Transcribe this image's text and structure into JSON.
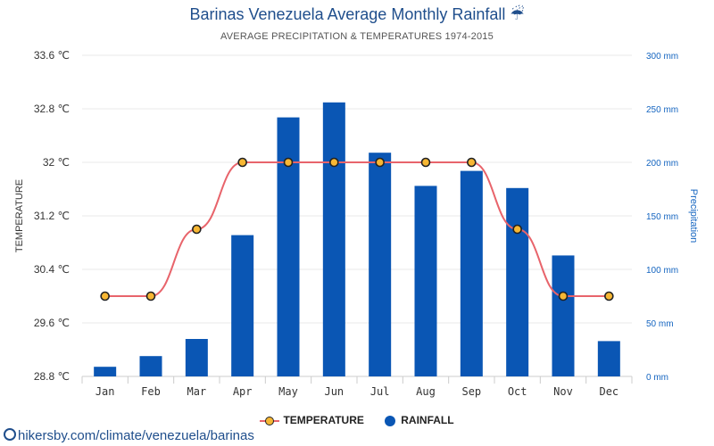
{
  "title": "Barinas Venezuela Average Monthly Rainfall ☔",
  "subtitle": "AVERAGE PRECIPITATION & TEMPERATURES 1974-2015",
  "legend": {
    "temperature": "TEMPERATURE",
    "rainfall": "RAINFALL"
  },
  "footer": {
    "link": "hikersby.com/climate/venezuela/barinas",
    "icon": "globe-icon"
  },
  "colors": {
    "rain": "#0a56b4",
    "temp_line": "#e8646b",
    "temp_marker": "#f7b733",
    "right_axis": "#1565c0",
    "title": "#1f4e8c"
  },
  "chart_data": {
    "type": "bar",
    "title": "Barinas Venezuela Average Monthly Rainfall ☔",
    "subtitle": "AVERAGE PRECIPITATION & TEMPERATURES 1974-2015",
    "categories": [
      "Jan",
      "Feb",
      "Mar",
      "Apr",
      "May",
      "Jun",
      "Jul",
      "Aug",
      "Sep",
      "Oct",
      "Nov",
      "Dec"
    ],
    "series": [
      {
        "name": "RAINFALL",
        "type": "bar",
        "axis": "right",
        "values": [
          9,
          19,
          35,
          132,
          242,
          256,
          209,
          178,
          192,
          176,
          113,
          33
        ]
      },
      {
        "name": "TEMPERATURE",
        "type": "line",
        "axis": "left",
        "values": [
          30.0,
          30.0,
          31.0,
          32.0,
          32.0,
          32.0,
          32.0,
          32.0,
          32.0,
          31.0,
          30.0,
          30.0
        ]
      }
    ],
    "y_left": {
      "label": "TEMPERATURE",
      "ticks": [
        "33.6 ℃",
        "32.8 ℃",
        "32 ℃",
        "31.2 ℃",
        "30.4 ℃",
        "29.6 ℃",
        "28.8 ℃"
      ],
      "min": 28.8,
      "max": 33.6
    },
    "y_right": {
      "label": "Precipitation",
      "ticks": [
        "300 mm",
        "250 mm",
        "200 mm",
        "150 mm",
        "100 mm",
        "50 mm",
        "0 mm"
      ],
      "min": 0,
      "max": 300
    },
    "grid": true,
    "legend_position": "bottom-center"
  }
}
